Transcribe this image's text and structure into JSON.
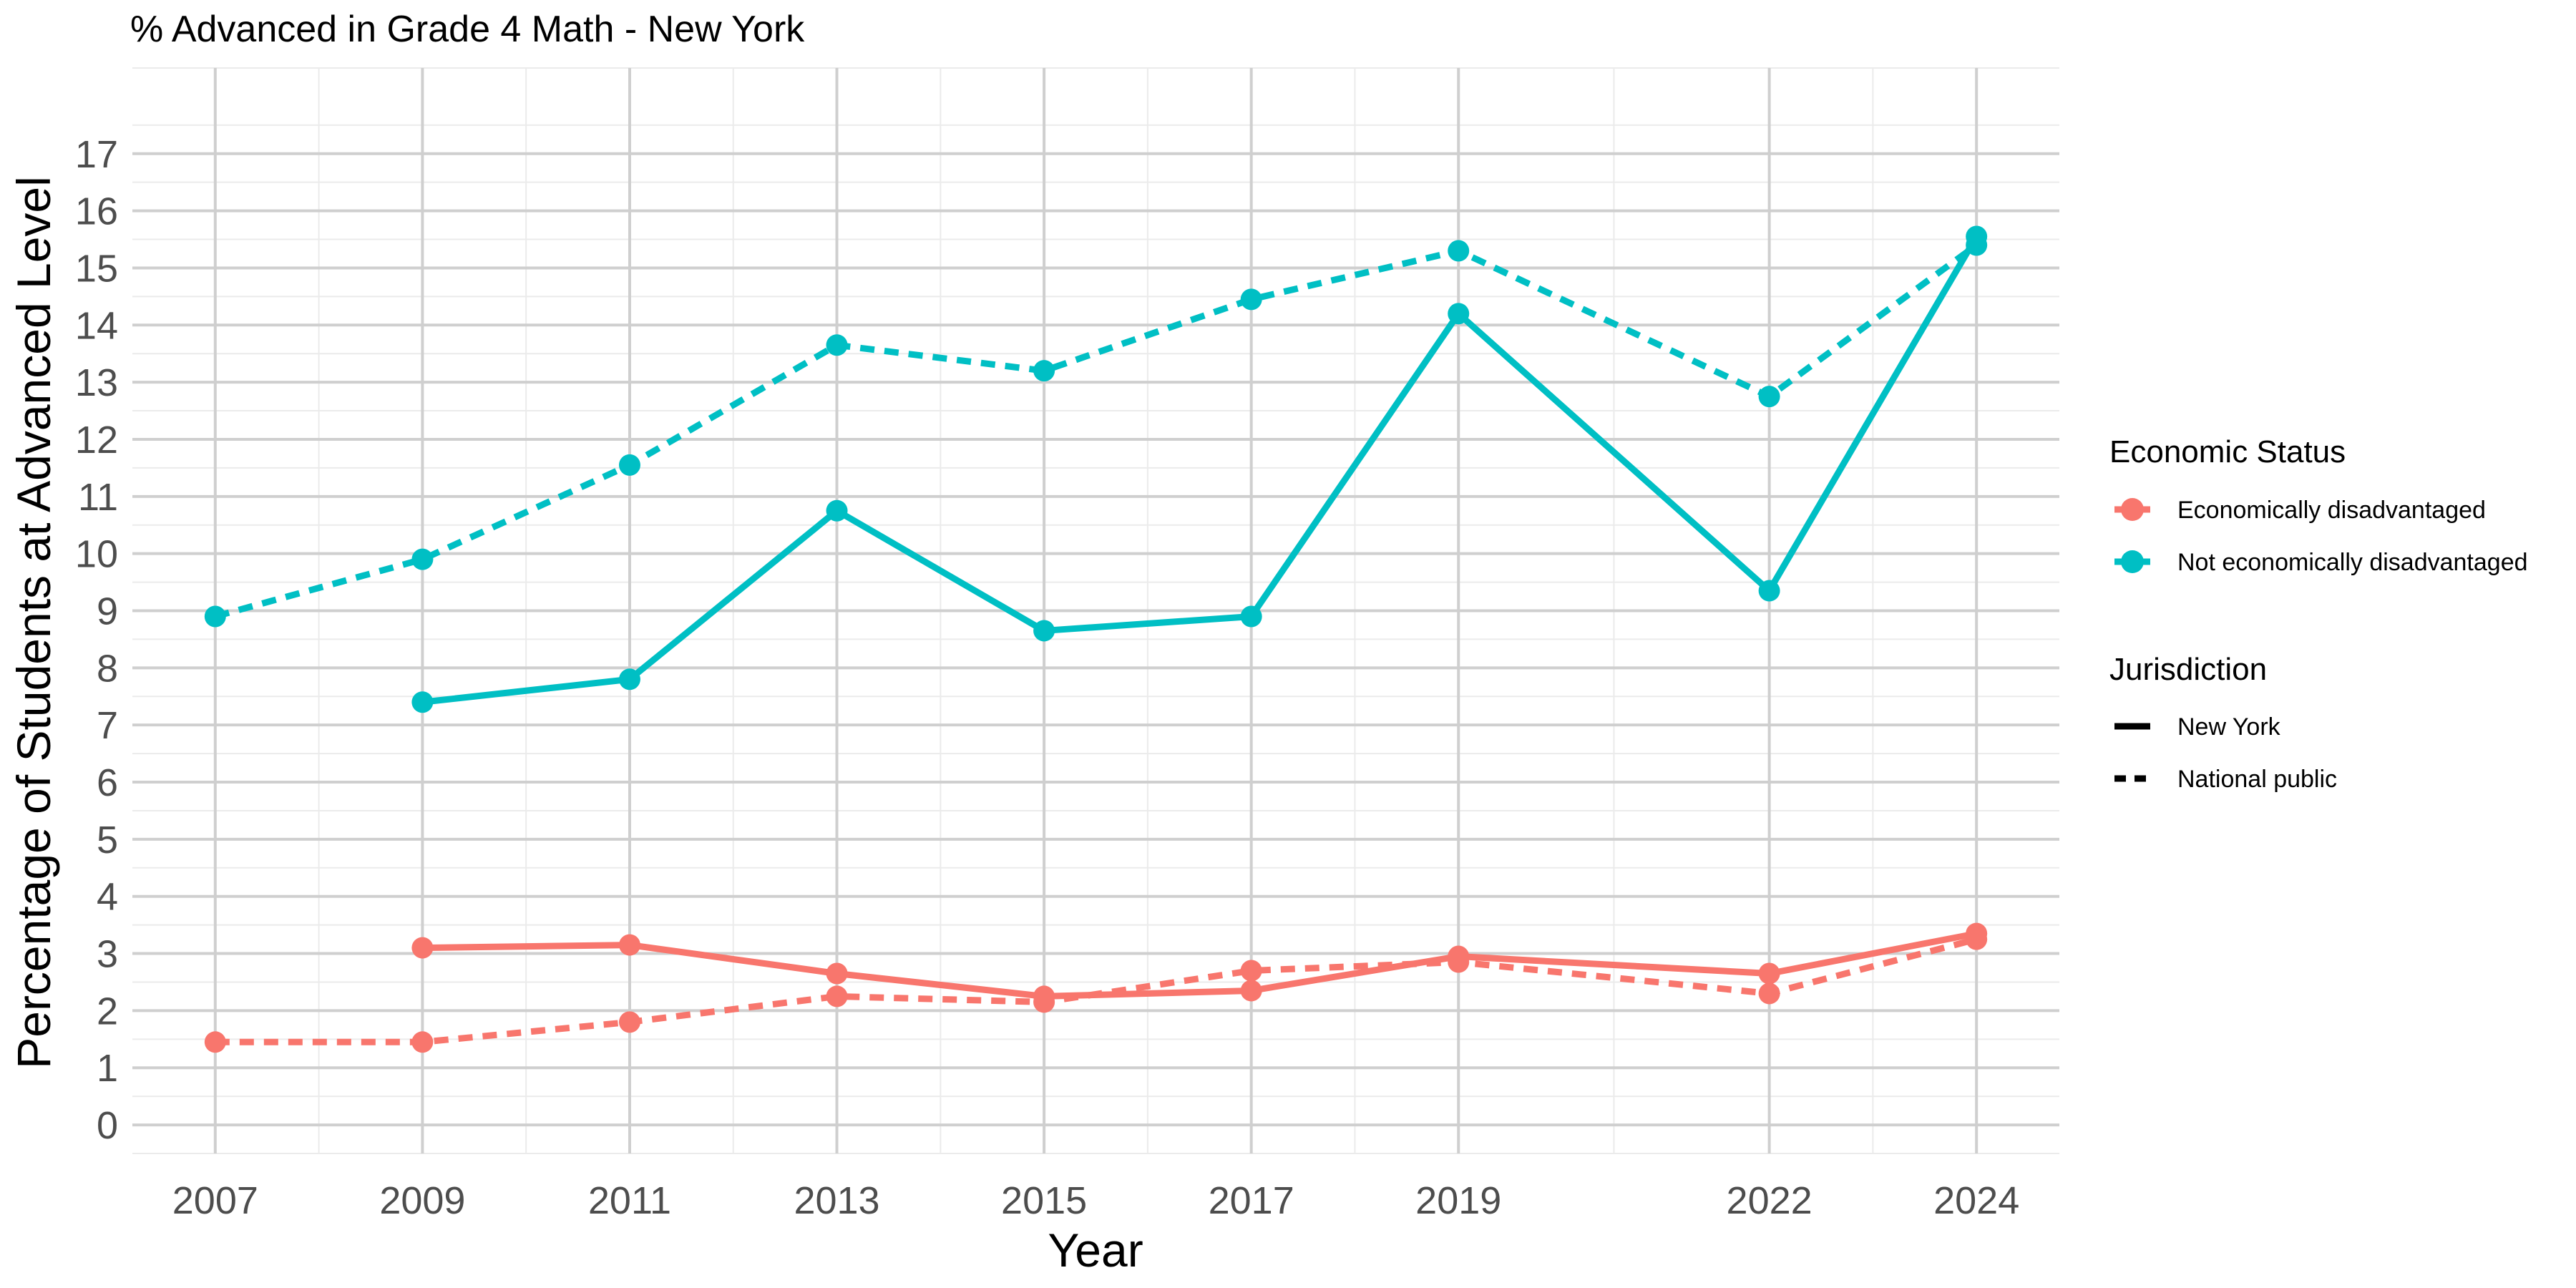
{
  "chart_data": {
    "type": "line",
    "title": "% Advanced in Grade 4 Math - New York",
    "xlabel": "Year",
    "ylabel": "Percentage of Students at Advanced Level",
    "x_ticks": [
      2007,
      2009,
      2011,
      2013,
      2015,
      2017,
      2019,
      2022,
      2024
    ],
    "y_ticks": [
      0,
      1,
      2,
      3,
      4,
      5,
      6,
      7,
      8,
      9,
      10,
      11,
      12,
      13,
      14,
      15,
      16,
      17
    ],
    "xlim": [
      2006.2,
      2024.8
    ],
    "ylim": [
      -0.5,
      18.5
    ],
    "grid": true,
    "legend": {
      "position": "right",
      "color_title": "Economic Status",
      "linetype_title": "Jurisdiction",
      "color_entries": [
        {
          "label": "Economically disadvantaged",
          "color": "#F8766D"
        },
        {
          "label": "Not economically disadvantaged",
          "color": "#00BFC4"
        }
      ],
      "linetype_entries": [
        {
          "label": "New York",
          "dash": "solid"
        },
        {
          "label": "National public",
          "dash": "dashed"
        }
      ]
    },
    "series": [
      {
        "status": "Not economically disadvantaged",
        "jurisdiction": "New York",
        "color": "#00BFC4",
        "dash": "solid",
        "x": [
          2009,
          2011,
          2013,
          2015,
          2017,
          2019,
          2022,
          2024
        ],
        "y": [
          7.4,
          7.8,
          10.75,
          8.65,
          8.9,
          14.2,
          9.35,
          15.55
        ]
      },
      {
        "status": "Not economically disadvantaged",
        "jurisdiction": "National public",
        "color": "#00BFC4",
        "dash": "dashed",
        "x": [
          2007,
          2009,
          2011,
          2013,
          2015,
          2017,
          2019,
          2022,
          2024
        ],
        "y": [
          8.9,
          9.9,
          11.55,
          13.65,
          13.2,
          14.45,
          15.3,
          12.75,
          15.4
        ]
      },
      {
        "status": "Economically disadvantaged",
        "jurisdiction": "New York",
        "color": "#F8766D",
        "dash": "solid",
        "x": [
          2009,
          2011,
          2013,
          2015,
          2017,
          2019,
          2022,
          2024
        ],
        "y": [
          3.1,
          3.15,
          2.65,
          2.25,
          2.35,
          2.95,
          2.65,
          3.35
        ]
      },
      {
        "status": "Economically disadvantaged",
        "jurisdiction": "National public",
        "color": "#F8766D",
        "dash": "dashed",
        "x": [
          2007,
          2009,
          2011,
          2013,
          2015,
          2017,
          2019,
          2022,
          2024
        ],
        "y": [
          1.45,
          1.45,
          1.8,
          2.25,
          2.15,
          2.7,
          2.85,
          2.3,
          3.25
        ]
      }
    ]
  }
}
